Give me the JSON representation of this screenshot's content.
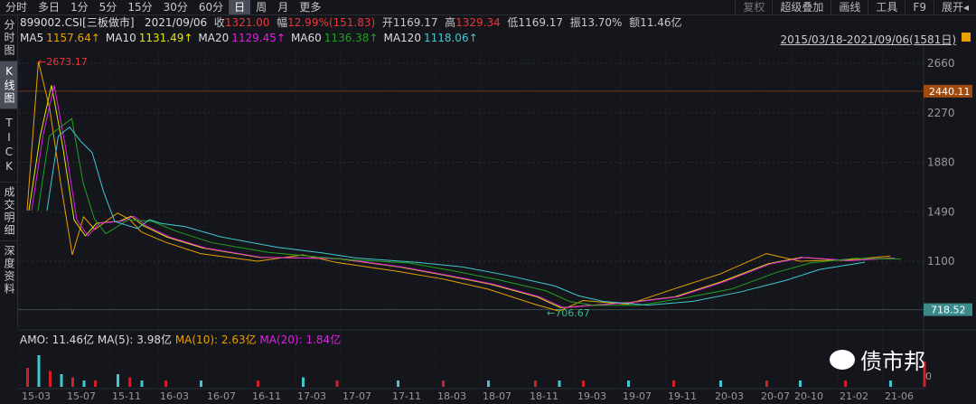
{
  "tabs": [
    "分时",
    "多日",
    "1分",
    "5分",
    "15分",
    "30分",
    "60分",
    "日",
    "周",
    "月",
    "更多"
  ],
  "active_tab": "日",
  "tools": [
    "复权",
    "超级叠加",
    "画线",
    "工具",
    "F9",
    "展开◂"
  ],
  "sidebar": [
    "分时图",
    "K线图",
    "TICK",
    "成交明细",
    "深度资料"
  ],
  "info": {
    "code": "899002.CSI[三板做市]",
    "date": "2021/09/06",
    "close_label": "收",
    "close": "1321.00",
    "chg_label": "幅",
    "chg": "12.99%(151.83)",
    "open_label": "开",
    "open": "1169.17",
    "high_label": "高",
    "high": "1329.34",
    "low_label": "低",
    "low": "1169.17",
    "amp_label": "振",
    "amp": "13.70%",
    "amt_label": "额",
    "amt": "11.46亿"
  },
  "ma": [
    {
      "label": "MA5",
      "value": "1157.64↑",
      "color": "#e8a000"
    },
    {
      "label": "MA10",
      "value": "1131.49↑",
      "color": "#e6e600"
    },
    {
      "label": "MA20",
      "value": "1129.45↑",
      "color": "#e020e0"
    },
    {
      "label": "MA60",
      "value": "1136.38↑",
      "color": "#20a020"
    },
    {
      "label": "MA120",
      "value": "1118.06↑",
      "color": "#40c8d0"
    }
  ],
  "range": "2015/03/18-2021/09/06(1581日)",
  "amo": {
    "amo": "AMO: 11.46亿",
    "ma5": "MA(5): 3.98亿",
    "ma10": "MA(10): 2.63亿",
    "ma20": "MA(20): 1.84亿"
  },
  "watermark": "债市邦",
  "volume_axis": [
    "0"
  ],
  "chart_data": {
    "type": "line",
    "y_ticks": [
      2660,
      2270,
      1880,
      1490,
      1100
    ],
    "ylim": [
      718.52,
      2673.17
    ],
    "max_label": "2673.17",
    "min_label": "706.67",
    "hline_top": "2440.11",
    "hline_bottom": "718.52",
    "x_ticks": [
      "15-03",
      "15-07",
      "15-11",
      "16-03",
      "16-07",
      "16-11",
      "17-03",
      "17-07",
      "17-11",
      "18-03",
      "18-07",
      "18-11",
      "19-03",
      "19-07",
      "19-11",
      "20-03",
      "20-07",
      "20-10",
      "21-02",
      "21-06"
    ],
    "series": {
      "x": [
        "15-03",
        "15-04",
        "15-05",
        "15-06",
        "15-07",
        "15-08",
        "15-09",
        "15-11",
        "15-12",
        "16-01",
        "16-03",
        "16-06",
        "16-11",
        "17-03",
        "17-06",
        "17-11",
        "18-03",
        "18-07",
        "18-11",
        "19-01",
        "19-03",
        "19-07",
        "19-11",
        "20-03",
        "20-07",
        "20-10",
        "21-02",
        "21-06",
        "21-09"
      ],
      "close": [
        1500,
        2673,
        2300,
        1700,
        1150,
        1450,
        1350,
        1480,
        1430,
        1330,
        1250,
        1160,
        1100,
        1150,
        1090,
        1020,
        960,
        880,
        760,
        707,
        790,
        760,
        880,
        1000,
        1160,
        1100,
        1110,
        1140,
        1321
      ]
    },
    "volume": [
      6,
      10,
      5,
      4,
      3,
      2,
      2,
      4,
      3,
      2,
      2,
      2,
      2,
      3,
      2,
      2,
      2,
      2,
      2,
      2,
      2,
      2,
      2,
      2,
      2,
      2,
      2,
      2,
      8
    ]
  }
}
